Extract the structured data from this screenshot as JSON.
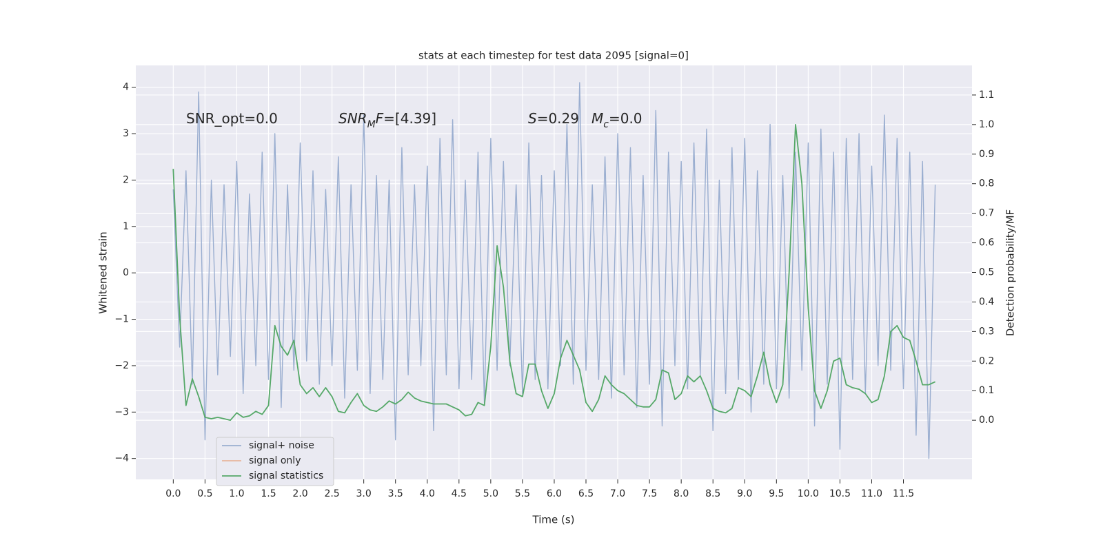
{
  "chart_data": {
    "type": "line",
    "title": "stats at each timestep for test data 2095 [signal=0]",
    "xlabel": "Time (s)",
    "ylabel": "Whitened strain",
    "y2label": "Detection probability/MF",
    "xlim": [
      -0.59,
      12.58
    ],
    "ylim": [
      -4.45,
      4.47
    ],
    "y2lim": [
      -0.2,
      1.2
    ],
    "grid": true,
    "legend": "lower left",
    "xticks": [
      {
        "value": 0,
        "label": "0.0"
      },
      0.5,
      {
        "value": 1,
        "label": "1.0"
      },
      1.5,
      {
        "value": 2,
        "label": "2.0"
      },
      2.5,
      {
        "value": 3,
        "label": "3.0"
      },
      3.5,
      {
        "value": 4,
        "label": "4.0"
      },
      4.5,
      {
        "value": 5,
        "label": "5.0"
      },
      5.5,
      {
        "value": 6,
        "label": "6.0"
      },
      6.5,
      {
        "value": 7,
        "label": "7.0"
      },
      7.5,
      {
        "value": 8,
        "label": "8.0"
      },
      8.5,
      {
        "value": 9,
        "label": "9.0"
      },
      9.5,
      {
        "value": 10,
        "label": "10.0"
      },
      10.5,
      {
        "value": 11,
        "label": "11.0"
      },
      11.5
    ],
    "yticks": [
      {
        "value": -4,
        "label": "−4"
      },
      {
        "value": -3,
        "label": "−3"
      },
      {
        "value": -2,
        "label": "−2"
      },
      {
        "value": -1,
        "label": "−1"
      },
      0,
      1,
      2,
      3,
      4
    ],
    "y2ticks": [
      {
        "value": 0,
        "label": "0.0"
      },
      0.1,
      0.2,
      0.3,
      0.4,
      0.5,
      0.6,
      0.7,
      0.8,
      0.9,
      {
        "value": 1,
        "label": "1.0"
      },
      1.1
    ],
    "x": [
      0,
      0.1,
      0.2,
      0.3,
      0.4,
      0.5,
      0.6,
      0.7,
      0.8,
      0.9,
      1,
      1.1,
      1.2,
      1.3,
      1.4,
      1.5,
      1.6,
      1.7,
      1.8,
      1.9,
      2,
      2.1,
      2.2,
      2.3,
      2.4,
      2.5,
      2.6,
      2.7,
      2.8,
      2.9,
      3,
      3.1,
      3.2,
      3.3,
      3.4,
      3.5,
      3.6,
      3.7,
      3.8,
      3.9,
      4,
      4.1,
      4.2,
      4.3,
      4.4,
      4.5,
      4.6,
      4.7,
      4.8,
      4.9,
      5,
      5.1,
      5.2,
      5.3,
      5.4,
      5.5,
      5.6,
      5.7,
      5.8,
      5.9,
      6,
      6.1,
      6.2,
      6.3,
      6.4,
      6.5,
      6.6,
      6.7,
      6.8,
      6.9,
      7,
      7.1,
      7.2,
      7.3,
      7.4,
      7.5,
      7.6,
      7.7,
      7.8,
      7.9,
      8,
      8.1,
      8.2,
      8.3,
      8.4,
      8.5,
      8.6,
      8.7,
      8.8,
      8.9,
      9,
      9.1,
      9.2,
      9.3,
      9.4,
      9.5,
      9.6,
      9.7,
      9.8,
      9.9,
      10,
      10.1,
      10.2,
      10.3,
      10.4,
      10.5,
      10.6,
      10.7,
      10.8,
      10.9,
      11,
      11.1,
      11.2,
      11.3,
      11.4,
      11.5,
      11.6,
      11.7,
      11.8,
      11.9,
      12
    ],
    "series": [
      {
        "name": "signal+ noise",
        "color": "#9aaed0",
        "values": [
          1.8,
          -1.6,
          2.2,
          -2.4,
          3.9,
          -3.6,
          2.0,
          -2.2,
          1.9,
          -1.8,
          2.4,
          -2.6,
          1.7,
          -2.0,
          2.6,
          -2.3,
          3.0,
          -2.9,
          1.9,
          -2.1,
          2.8,
          -1.9,
          2.2,
          -2.4,
          1.8,
          -2.0,
          2.5,
          -2.7,
          1.9,
          -2.1,
          3.4,
          -2.6,
          2.1,
          -2.3,
          2.0,
          -3.6,
          2.7,
          -2.2,
          1.9,
          -2.0,
          2.3,
          -3.4,
          2.9,
          -2.2,
          3.3,
          -2.5,
          2.0,
          -2.3,
          2.6,
          -2.8,
          2.9,
          -2.1,
          2.4,
          -2.0,
          1.9,
          -2.6,
          2.8,
          -2.3,
          2.1,
          -2.5,
          2.2,
          -2.0,
          3.2,
          -2.4,
          4.1,
          -2.1,
          1.9,
          -2.3,
          2.5,
          -2.7,
          3.0,
          -2.2,
          2.7,
          -2.9,
          2.1,
          -2.4,
          3.5,
          -3.3,
          2.6,
          -2.0,
          2.4,
          -2.5,
          2.8,
          -2.2,
          3.1,
          -3.4,
          2.0,
          -2.6,
          2.7,
          -2.3,
          2.9,
          -3.0,
          2.2,
          -2.4,
          3.2,
          -2.5,
          2.1,
          -2.7,
          2.6,
          -2.1,
          2.8,
          -3.3,
          3.1,
          -2.4,
          2.6,
          -3.8,
          2.9,
          -2.3,
          3.0,
          -2.6,
          2.3,
          -2.0,
          3.4,
          -2.1,
          2.9,
          -2.5,
          2.6,
          -3.5,
          2.4,
          -4.0,
          1.9
        ]
      },
      {
        "name": "signal only",
        "color": "#e8b59c"
      },
      {
        "name": "signal statistics",
        "color": "#55a868",
        "axis": "y2",
        "values": [
          0.85,
          0.35,
          0.05,
          0.14,
          0.08,
          0.01,
          0.005,
          0.01,
          0.005,
          0.0,
          0.025,
          0.01,
          0.015,
          0.03,
          0.02,
          0.05,
          0.32,
          0.25,
          0.22,
          0.27,
          0.12,
          0.09,
          0.11,
          0.08,
          0.11,
          0.08,
          0.03,
          0.025,
          0.06,
          0.09,
          0.05,
          0.035,
          0.03,
          0.045,
          0.065,
          0.055,
          0.07,
          0.095,
          0.075,
          0.065,
          0.06,
          0.055,
          0.055,
          0.055,
          0.045,
          0.035,
          0.015,
          0.02,
          0.06,
          0.05,
          0.25,
          0.59,
          0.45,
          0.2,
          0.09,
          0.08,
          0.19,
          0.19,
          0.1,
          0.04,
          0.09,
          0.21,
          0.27,
          0.22,
          0.17,
          0.06,
          0.03,
          0.07,
          0.15,
          0.12,
          0.1,
          0.09,
          0.07,
          0.05,
          0.045,
          0.045,
          0.07,
          0.17,
          0.16,
          0.07,
          0.09,
          0.15,
          0.13,
          0.15,
          0.1,
          0.04,
          0.03,
          0.025,
          0.04,
          0.11,
          0.1,
          0.08,
          0.15,
          0.23,
          0.12,
          0.06,
          0.12,
          0.5,
          1.0,
          0.8,
          0.38,
          0.1,
          0.04,
          0.1,
          0.2,
          0.21,
          0.12,
          0.11,
          0.105,
          0.09,
          0.06,
          0.07,
          0.15,
          0.3,
          0.32,
          0.28,
          0.27,
          0.2,
          0.12,
          0.12,
          0.13
        ]
      }
    ],
    "annotations": [
      [
        {
          "text": "SNR_opt=0.0"
        }
      ],
      [
        {
          "text": "SNR",
          "style": "italic"
        },
        {
          "text": "M",
          "style": "sub"
        },
        {
          "text": "F",
          "style": "italic"
        },
        {
          "text": "=[4.39]"
        }
      ],
      [
        {
          "text": "S",
          "style": "italic"
        },
        {
          "text": "=0.29"
        }
      ],
      [
        {
          "text": "M",
          "style": "italic"
        },
        {
          "text": "c",
          "style": "sub"
        },
        {
          "text": "=0.0"
        }
      ]
    ]
  }
}
